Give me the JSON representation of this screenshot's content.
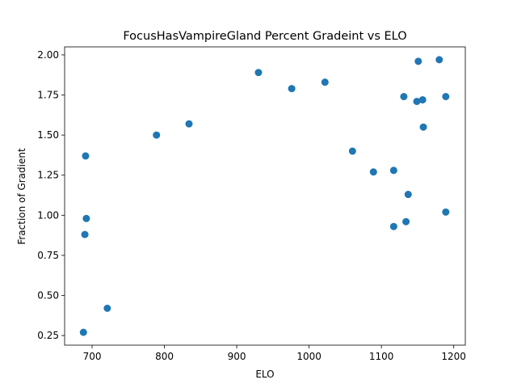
{
  "chart_data": {
    "type": "scatter",
    "title": "FocusHasVampireGland Percent Gradeint vs ELO",
    "xlabel": "ELO",
    "ylabel": "Fraction of Gradient",
    "xlim": [
      662,
      1216
    ],
    "ylim": [
      0.19,
      2.05
    ],
    "xticks": [
      700,
      800,
      900,
      1000,
      1100,
      1200
    ],
    "yticks": [
      0.25,
      0.5,
      0.75,
      1.0,
      1.25,
      1.5,
      1.75,
      2.0
    ],
    "ytick_labels": [
      "0.25",
      "0.50",
      "0.75",
      "1.00",
      "1.25",
      "1.50",
      "1.75",
      "2.00"
    ],
    "grid": false,
    "legend": "none",
    "color": "#1f77b4",
    "points": [
      {
        "x": 688,
        "y": 0.27
      },
      {
        "x": 690,
        "y": 0.88
      },
      {
        "x": 691,
        "y": 1.37
      },
      {
        "x": 692,
        "y": 0.98
      },
      {
        "x": 721,
        "y": 0.42
      },
      {
        "x": 789,
        "y": 1.5
      },
      {
        "x": 834,
        "y": 1.57
      },
      {
        "x": 930,
        "y": 1.89
      },
      {
        "x": 976,
        "y": 1.79
      },
      {
        "x": 1022,
        "y": 1.83
      },
      {
        "x": 1060,
        "y": 1.4
      },
      {
        "x": 1089,
        "y": 1.27
      },
      {
        "x": 1117,
        "y": 1.28
      },
      {
        "x": 1117,
        "y": 0.93
      },
      {
        "x": 1131,
        "y": 1.74
      },
      {
        "x": 1134,
        "y": 0.96
      },
      {
        "x": 1137,
        "y": 1.13
      },
      {
        "x": 1149,
        "y": 1.71
      },
      {
        "x": 1151,
        "y": 1.96
      },
      {
        "x": 1157,
        "y": 1.72
      },
      {
        "x": 1158,
        "y": 1.55
      },
      {
        "x": 1180,
        "y": 1.97
      },
      {
        "x": 1189,
        "y": 1.74
      },
      {
        "x": 1189,
        "y": 1.02
      }
    ]
  }
}
